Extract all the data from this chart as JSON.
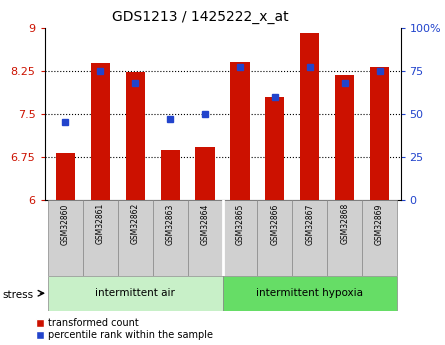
{
  "title": "GDS1213 / 1425222_x_at",
  "samples": [
    "GSM32860",
    "GSM32861",
    "GSM32862",
    "GSM32863",
    "GSM32864",
    "GSM32865",
    "GSM32866",
    "GSM32867",
    "GSM32868",
    "GSM32869"
  ],
  "bar_values": [
    6.82,
    8.38,
    8.22,
    6.87,
    6.92,
    8.4,
    7.8,
    8.9,
    8.18,
    8.32
  ],
  "pct_values": [
    45,
    75,
    68,
    47,
    50,
    77,
    60,
    77,
    68,
    75
  ],
  "bar_color": "#cc1100",
  "marker_color": "#2244cc",
  "ylim_left": [
    6,
    9
  ],
  "ylim_right": [
    0,
    100
  ],
  "yticks_left": [
    6,
    6.75,
    7.5,
    8.25,
    9
  ],
  "yticks_right": [
    0,
    25,
    50,
    75,
    100
  ],
  "ytick_labels_left": [
    "6",
    "6.75",
    "7.5",
    "8.25",
    "9"
  ],
  "ytick_labels_right": [
    "0",
    "25",
    "50",
    "75",
    "100%"
  ],
  "group1_label": "intermittent air",
  "group2_label": "intermittent hypoxia",
  "stress_label": "stress",
  "legend_bar": "transformed count",
  "legend_marker": "percentile rank within the sample",
  "group_bg_color1": "#c8f0c8",
  "group_bg_color2": "#66dd66",
  "tick_bg_color": "#d0d0d0",
  "bar_width": 0.55,
  "base_value": 6.0,
  "n_group1": 5,
  "n_group2": 5
}
